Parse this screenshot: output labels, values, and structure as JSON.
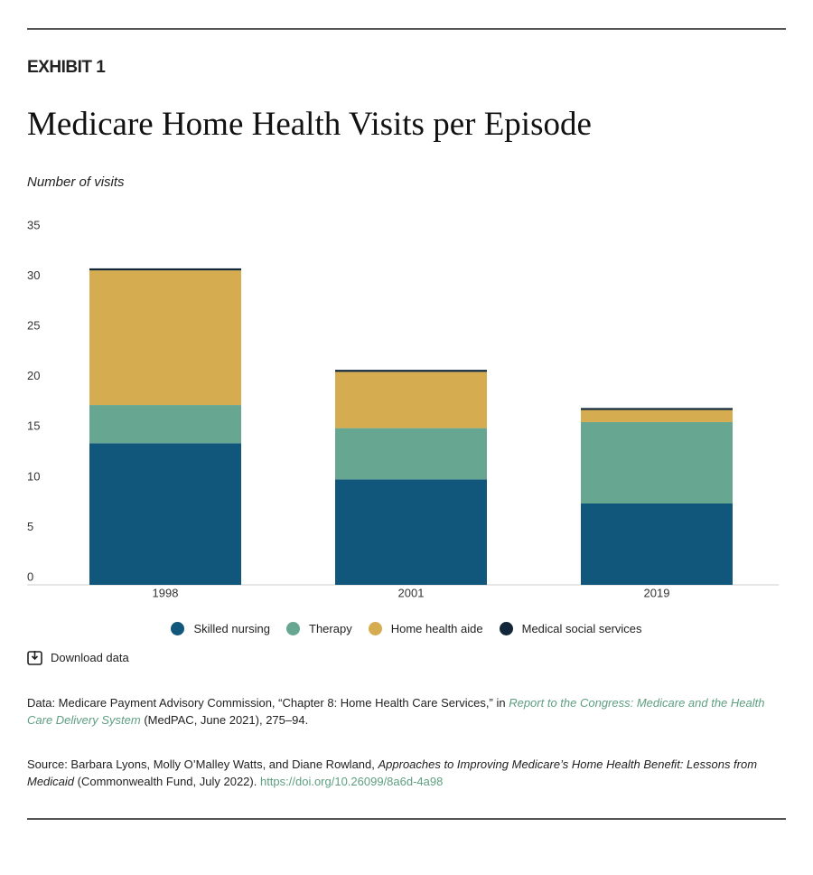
{
  "exhibit": "EXHIBIT 1",
  "chart_data": {
    "type": "stacked_bar",
    "title": "Medicare Home Health Visits per Episode",
    "y_label": "Number of visits",
    "categories": [
      "1998",
      "2001",
      "2019"
    ],
    "series": [
      {
        "name": "Skilled nursing",
        "color": "#11567b",
        "values": [
          14.1,
          10.5,
          8.1
        ]
      },
      {
        "name": "Therapy",
        "color": "#67a690",
        "values": [
          3.8,
          5.1,
          8.1
        ]
      },
      {
        "name": "Home health aide",
        "color": "#d5ad50",
        "values": [
          13.4,
          5.6,
          1.2
        ]
      },
      {
        "name": "Medical social services",
        "color": "#13273a",
        "values": [
          0.2,
          0.2,
          0.2
        ]
      }
    ],
    "ylim": [
      0,
      35
    ],
    "yticks": [
      0,
      5,
      10,
      15,
      20,
      25,
      30,
      35
    ],
    "grid": false
  },
  "download": "Download data",
  "data_note": [
    "Data: Medicare Payment Advisory Commission, “Chapter 8: Home Health Care Services,” in ",
    "Report to the Congress: Medicare and the Health Care Delivery System",
    " (MedPAC, June 2021), 275–94."
  ],
  "source_note": [
    "Source: Barbara Lyons, Molly O’Malley Watts, and Diane Rowland, ",
    "Approaches to Improving Medicare’s Home Health Benefit: Lessons from Medicaid",
    " (Commonwealth Fund, July 2022). ",
    "https://doi.org/10.26099/8a6d-4a98"
  ]
}
